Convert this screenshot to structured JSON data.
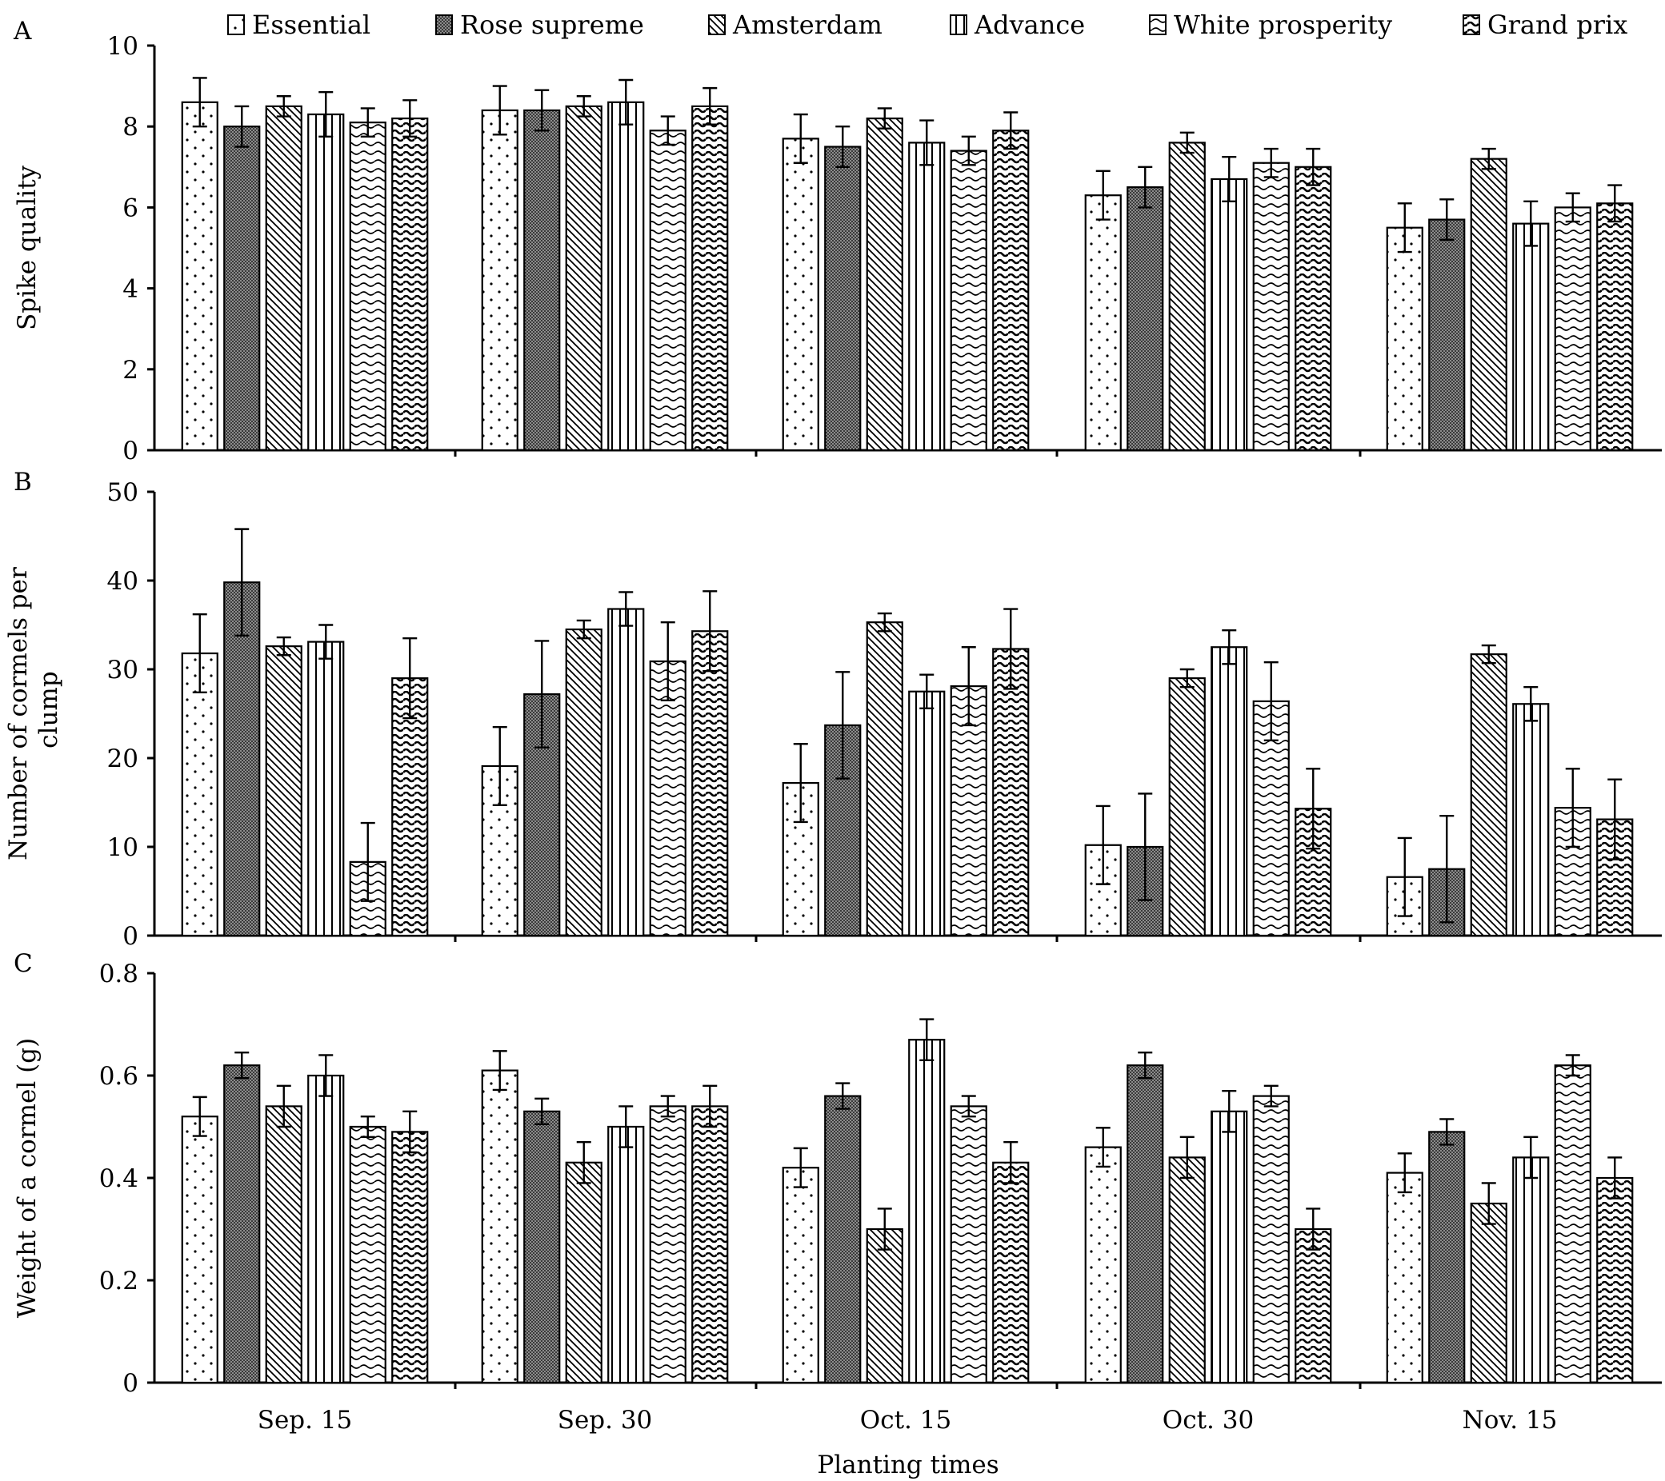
{
  "chart_data": [
    {
      "type": "bar",
      "panel_label": "A",
      "ylabel": "Spike quality",
      "xlabel": "",
      "ylim": [
        0,
        10
      ],
      "yticks": [
        0,
        2,
        4,
        6,
        8,
        10
      ],
      "categories": [
        "Sep. 15",
        "Sep. 30",
        "Oct. 15",
        "Oct. 30",
        "Nov. 15"
      ],
      "series": [
        {
          "name": "Essential",
          "values": [
            8.6,
            8.4,
            7.7,
            6.3,
            5.5
          ],
          "errors": [
            0.6,
            0.6,
            0.6,
            0.6,
            0.6
          ]
        },
        {
          "name": "Rose supreme",
          "values": [
            8.0,
            8.4,
            7.5,
            6.5,
            5.7
          ],
          "errors": [
            0.5,
            0.5,
            0.5,
            0.5,
            0.5
          ]
        },
        {
          "name": "Amsterdam",
          "values": [
            8.5,
            8.5,
            8.2,
            7.6,
            7.2
          ],
          "errors": [
            0.25,
            0.25,
            0.25,
            0.25,
            0.25
          ]
        },
        {
          "name": "Advance",
          "values": [
            8.3,
            8.6,
            7.6,
            6.7,
            5.6
          ],
          "errors": [
            0.55,
            0.55,
            0.55,
            0.55,
            0.55
          ]
        },
        {
          "name": "White prosperity",
          "values": [
            8.1,
            7.9,
            7.4,
            7.1,
            6.0
          ],
          "errors": [
            0.35,
            0.35,
            0.35,
            0.35,
            0.35
          ]
        },
        {
          "name": "Grand prix",
          "values": [
            8.2,
            8.5,
            7.9,
            7.0,
            6.1
          ],
          "errors": [
            0.45,
            0.45,
            0.45,
            0.45,
            0.45
          ]
        }
      ]
    },
    {
      "type": "bar",
      "panel_label": "B",
      "ylabel": "Number of cormels per clump",
      "xlabel": "",
      "ylim": [
        0,
        50
      ],
      "yticks": [
        0,
        10,
        20,
        30,
        40,
        50
      ],
      "categories": [
        "Sep. 15",
        "Sep. 30",
        "Oct. 15",
        "Oct. 30",
        "Nov. 15"
      ],
      "series": [
        {
          "name": "Essential",
          "values": [
            31.8,
            19.1,
            17.2,
            10.2,
            6.6
          ],
          "errors": [
            4.4,
            4.4,
            4.4,
            4.4,
            4.4
          ]
        },
        {
          "name": "Rose supreme",
          "values": [
            39.8,
            27.2,
            23.7,
            10.0,
            7.5
          ],
          "errors": [
            6.0,
            6.0,
            6.0,
            6.0,
            6.0
          ]
        },
        {
          "name": "Amsterdam",
          "values": [
            32.6,
            34.5,
            35.3,
            29.0,
            31.7
          ],
          "errors": [
            1.0,
            1.0,
            1.0,
            1.0,
            1.0
          ]
        },
        {
          "name": "Advance",
          "values": [
            33.1,
            36.8,
            27.5,
            32.5,
            26.1
          ],
          "errors": [
            1.9,
            1.9,
            1.9,
            1.9,
            1.9
          ]
        },
        {
          "name": "White prosperity",
          "values": [
            8.3,
            30.9,
            28.1,
            26.4,
            14.4
          ],
          "errors": [
            4.4,
            4.4,
            4.4,
            4.4,
            4.4
          ]
        },
        {
          "name": "Grand prix",
          "values": [
            29.0,
            34.3,
            32.3,
            14.3,
            13.1
          ],
          "errors": [
            4.5,
            4.5,
            4.5,
            4.5,
            4.5
          ]
        }
      ]
    },
    {
      "type": "bar",
      "panel_label": "C",
      "ylabel": "Weight of a cormel (g)",
      "xlabel": "Planting times",
      "ylim": [
        0,
        0.8
      ],
      "yticks": [
        "0",
        "0.2",
        "0.4",
        "0.6",
        "0.8"
      ],
      "categories": [
        "Sep. 15",
        "Sep. 30",
        "Oct. 15",
        "Oct. 30",
        "Nov. 15"
      ],
      "series": [
        {
          "name": "Essential",
          "values": [
            0.52,
            0.61,
            0.42,
            0.46,
            0.41
          ],
          "errors": [
            0.038,
            0.038,
            0.038,
            0.038,
            0.038
          ]
        },
        {
          "name": "Rose supreme",
          "values": [
            0.62,
            0.53,
            0.56,
            0.62,
            0.49
          ],
          "errors": [
            0.025,
            0.025,
            0.025,
            0.025,
            0.025
          ]
        },
        {
          "name": "Amsterdam",
          "values": [
            0.54,
            0.43,
            0.3,
            0.44,
            0.35
          ],
          "errors": [
            0.04,
            0.04,
            0.04,
            0.04,
            0.04
          ]
        },
        {
          "name": "Advance",
          "values": [
            0.6,
            0.5,
            0.67,
            0.53,
            0.44
          ],
          "errors": [
            0.04,
            0.04,
            0.04,
            0.04,
            0.04
          ]
        },
        {
          "name": "White prosperity",
          "values": [
            0.5,
            0.54,
            0.54,
            0.56,
            0.62
          ],
          "errors": [
            0.02,
            0.02,
            0.02,
            0.02,
            0.02
          ]
        },
        {
          "name": "Grand prix",
          "values": [
            0.49,
            0.54,
            0.43,
            0.3,
            0.4
          ],
          "errors": [
            0.04,
            0.04,
            0.04,
            0.04,
            0.04
          ]
        }
      ]
    }
  ],
  "legend": {
    "placement": "top",
    "items": [
      "Essential",
      "Rose supreme",
      "Amsterdam",
      "Advance",
      "White prosperity",
      "Grand prix"
    ]
  }
}
